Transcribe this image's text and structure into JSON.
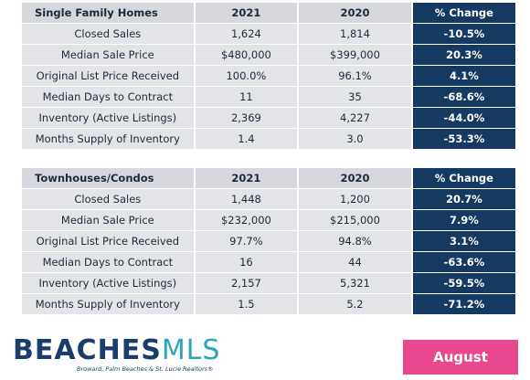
{
  "tables": [
    {
      "header": [
        "Single Family Homes",
        "2021",
        "2020",
        "% Change"
      ],
      "rows": [
        [
          "Closed Sales",
          "1,624",
          "1,814",
          "-10.5%"
        ],
        [
          "Median Sale Price",
          "$480,000",
          "$399,000",
          "20.3%"
        ],
        [
          "Original List Price Received",
          "100.0%",
          "96.1%",
          "4.1%"
        ],
        [
          "Median Days to Contract",
          "11",
          "35",
          "-68.6%"
        ],
        [
          "Inventory (Active Listings)",
          "2,369",
          "4,227",
          "-44.0%"
        ],
        [
          "Months Supply of Inventory",
          "1.4",
          "3.0",
          "-53.3%"
        ]
      ]
    },
    {
      "header": [
        "Townhouses/Condos",
        "2021",
        "2020",
        "% Change"
      ],
      "rows": [
        [
          "Closed Sales",
          "1,448",
          "1,200",
          "20.7%"
        ],
        [
          "Median Sale Price",
          "$232,000",
          "$215,000",
          "7.9%"
        ],
        [
          "Original List Price Received",
          "97.7%",
          "94.8%",
          "3.1%"
        ],
        [
          "Median Days to Contract",
          "16",
          "44",
          "-63.6%"
        ],
        [
          "Inventory (Active Listings)",
          "2,157",
          "5,321",
          "-59.5%"
        ],
        [
          "Months Supply of Inventory",
          "1.5",
          "5.2",
          "-71.2%"
        ]
      ]
    }
  ],
  "logo": {
    "part1": "BEACHES",
    "part2": "MLS",
    "tagline": "Broward, Palm Beaches & St. Lucie Realtors®"
  },
  "month": "August"
}
